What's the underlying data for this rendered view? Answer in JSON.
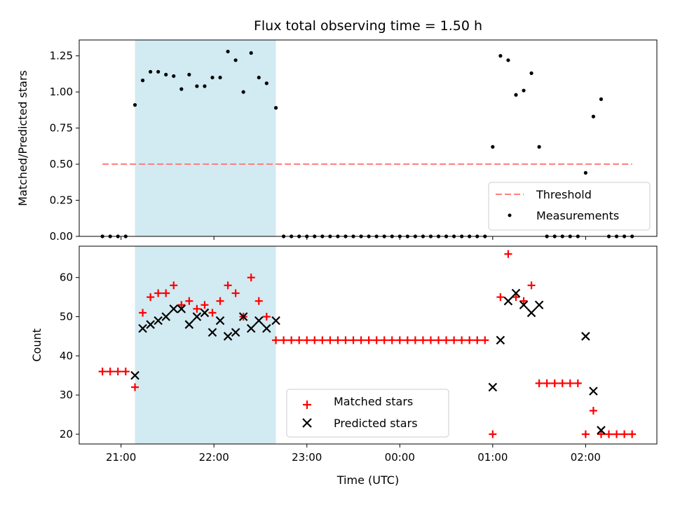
{
  "chart_data": [
    {
      "type": "scatter",
      "title": "Flux total observing time = 1.50 h",
      "ylabel": "Matched/Predicted stars",
      "xlabel": "",
      "xlim": [
        "20:33",
        "02:46"
      ],
      "ylim": [
        0,
        1.36
      ],
      "yticks": [
        "0.00",
        "0.25",
        "0.50",
        "0.75",
        "1.00",
        "1.25"
      ],
      "ytick_values": [
        0,
        0.25,
        0.5,
        0.75,
        1.0,
        1.25
      ],
      "shaded_span": [
        "21:09",
        "22:40"
      ],
      "shaded_color": "#add8e6",
      "legend_position": "lower right",
      "threshold": {
        "name": "Threshold",
        "value": 0.5,
        "x_range": [
          "20:48",
          "02:30"
        ],
        "color": "#ff7f7f",
        "style": "dashed"
      },
      "series": [
        {
          "name": "Measurements",
          "color": "#000000",
          "marker": "dot",
          "points": [
            [
              "20:48",
              0
            ],
            [
              "20:53",
              0
            ],
            [
              "20:58",
              0
            ],
            [
              "21:03",
              0
            ],
            [
              "21:09",
              0.91
            ],
            [
              "21:14",
              1.08
            ],
            [
              "21:19",
              1.14
            ],
            [
              "21:24",
              1.14
            ],
            [
              "21:29",
              1.12
            ],
            [
              "21:34",
              1.11
            ],
            [
              "21:39",
              1.02
            ],
            [
              "21:44",
              1.12
            ],
            [
              "21:49",
              1.04
            ],
            [
              "21:54",
              1.04
            ],
            [
              "21:59",
              1.1
            ],
            [
              "22:04",
              1.1
            ],
            [
              "22:09",
              1.28
            ],
            [
              "22:14",
              1.22
            ],
            [
              "22:19",
              1.0
            ],
            [
              "22:24",
              1.27
            ],
            [
              "22:29",
              1.1
            ],
            [
              "22:34",
              1.06
            ],
            [
              "22:40",
              0.89
            ],
            [
              "22:45",
              0
            ],
            [
              "22:50",
              0
            ],
            [
              "22:55",
              0
            ],
            [
              "23:00",
              0
            ],
            [
              "23:05",
              0
            ],
            [
              "23:10",
              0
            ],
            [
              "23:15",
              0
            ],
            [
              "23:20",
              0
            ],
            [
              "23:25",
              0
            ],
            [
              "23:30",
              0
            ],
            [
              "23:35",
              0
            ],
            [
              "23:40",
              0
            ],
            [
              "23:45",
              0
            ],
            [
              "23:50",
              0
            ],
            [
              "23:55",
              0
            ],
            [
              "00:00",
              0
            ],
            [
              "00:05",
              0
            ],
            [
              "00:10",
              0
            ],
            [
              "00:15",
              0
            ],
            [
              "00:20",
              0
            ],
            [
              "00:25",
              0
            ],
            [
              "00:30",
              0
            ],
            [
              "00:35",
              0
            ],
            [
              "00:40",
              0
            ],
            [
              "00:45",
              0
            ],
            [
              "00:50",
              0
            ],
            [
              "00:55",
              0
            ],
            [
              "01:00",
              0.62
            ],
            [
              "01:05",
              1.25
            ],
            [
              "01:10",
              1.22
            ],
            [
              "01:15",
              0.98
            ],
            [
              "01:20",
              1.01
            ],
            [
              "01:25",
              1.13
            ],
            [
              "01:30",
              0.62
            ],
            [
              "01:35",
              0
            ],
            [
              "01:40",
              0
            ],
            [
              "01:45",
              0
            ],
            [
              "01:50",
              0
            ],
            [
              "01:55",
              0
            ],
            [
              "02:00",
              0.44
            ],
            [
              "02:05",
              0.83
            ],
            [
              "02:10",
              0.95
            ],
            [
              "02:15",
              0
            ],
            [
              "02:20",
              0
            ],
            [
              "02:25",
              0
            ],
            [
              "02:30",
              0
            ]
          ]
        }
      ]
    },
    {
      "type": "scatter",
      "title": "",
      "ylabel": "Count",
      "xlabel": "Time (UTC)",
      "xlim": [
        "20:33",
        "02:46"
      ],
      "ylim": [
        17.5,
        68
      ],
      "xticks": [
        "21:00",
        "22:00",
        "23:00",
        "00:00",
        "01:00",
        "02:00"
      ],
      "yticks": [
        "20",
        "30",
        "40",
        "50",
        "60"
      ],
      "ytick_values": [
        20,
        30,
        40,
        50,
        60
      ],
      "shaded_span": [
        "21:09",
        "22:40"
      ],
      "shaded_color": "#add8e6",
      "legend_position": "lower center",
      "series": [
        {
          "name": "Matched stars",
          "color": "#ff0000",
          "marker": "plus",
          "points": [
            [
              "20:48",
              36
            ],
            [
              "20:53",
              36
            ],
            [
              "20:58",
              36
            ],
            [
              "21:03",
              36
            ],
            [
              "21:09",
              32
            ],
            [
              "21:14",
              51
            ],
            [
              "21:19",
              55
            ],
            [
              "21:24",
              56
            ],
            [
              "21:29",
              56
            ],
            [
              "21:34",
              58
            ],
            [
              "21:39",
              53
            ],
            [
              "21:44",
              54
            ],
            [
              "21:49",
              52
            ],
            [
              "21:54",
              53
            ],
            [
              "21:59",
              51
            ],
            [
              "22:04",
              54
            ],
            [
              "22:09",
              58
            ],
            [
              "22:14",
              56
            ],
            [
              "22:19",
              50
            ],
            [
              "22:24",
              60
            ],
            [
              "22:29",
              54
            ],
            [
              "22:34",
              50
            ],
            [
              "22:40",
              44
            ],
            [
              "22:45",
              44
            ],
            [
              "22:50",
              44
            ],
            [
              "22:55",
              44
            ],
            [
              "23:00",
              44
            ],
            [
              "23:05",
              44
            ],
            [
              "23:10",
              44
            ],
            [
              "23:15",
              44
            ],
            [
              "23:20",
              44
            ],
            [
              "23:25",
              44
            ],
            [
              "23:30",
              44
            ],
            [
              "23:35",
              44
            ],
            [
              "23:40",
              44
            ],
            [
              "23:45",
              44
            ],
            [
              "23:50",
              44
            ],
            [
              "23:55",
              44
            ],
            [
              "00:00",
              44
            ],
            [
              "00:05",
              44
            ],
            [
              "00:10",
              44
            ],
            [
              "00:15",
              44
            ],
            [
              "00:20",
              44
            ],
            [
              "00:25",
              44
            ],
            [
              "00:30",
              44
            ],
            [
              "00:35",
              44
            ],
            [
              "00:40",
              44
            ],
            [
              "00:45",
              44
            ],
            [
              "00:50",
              44
            ],
            [
              "00:55",
              44
            ],
            [
              "01:00",
              20
            ],
            [
              "01:05",
              55
            ],
            [
              "01:10",
              66
            ],
            [
              "01:15",
              55
            ],
            [
              "01:20",
              54
            ],
            [
              "01:25",
              58
            ],
            [
              "01:30",
              33
            ],
            [
              "01:35",
              33
            ],
            [
              "01:40",
              33
            ],
            [
              "01:45",
              33
            ],
            [
              "01:50",
              33
            ],
            [
              "01:55",
              33
            ],
            [
              "02:00",
              20
            ],
            [
              "02:05",
              26
            ],
            [
              "02:10",
              20
            ],
            [
              "02:15",
              20
            ],
            [
              "02:20",
              20
            ],
            [
              "02:25",
              20
            ],
            [
              "02:30",
              20
            ]
          ]
        },
        {
          "name": "Predicted stars",
          "color": "#000000",
          "marker": "x",
          "points": [
            [
              "21:09",
              35
            ],
            [
              "21:14",
              47
            ],
            [
              "21:19",
              48
            ],
            [
              "21:24",
              49
            ],
            [
              "21:29",
              50
            ],
            [
              "21:34",
              52
            ],
            [
              "21:39",
              52
            ],
            [
              "21:44",
              48
            ],
            [
              "21:49",
              50
            ],
            [
              "21:54",
              51
            ],
            [
              "21:59",
              46
            ],
            [
              "22:04",
              49
            ],
            [
              "22:09",
              45
            ],
            [
              "22:14",
              46
            ],
            [
              "22:19",
              50
            ],
            [
              "22:24",
              47
            ],
            [
              "22:29",
              49
            ],
            [
              "22:34",
              47
            ],
            [
              "22:40",
              49
            ],
            [
              "01:00",
              32
            ],
            [
              "01:05",
              44
            ],
            [
              "01:10",
              54
            ],
            [
              "01:15",
              56
            ],
            [
              "01:20",
              53
            ],
            [
              "01:25",
              51
            ],
            [
              "01:30",
              53
            ],
            [
              "02:00",
              45
            ],
            [
              "02:05",
              31
            ],
            [
              "02:10",
              21
            ]
          ]
        }
      ]
    }
  ]
}
